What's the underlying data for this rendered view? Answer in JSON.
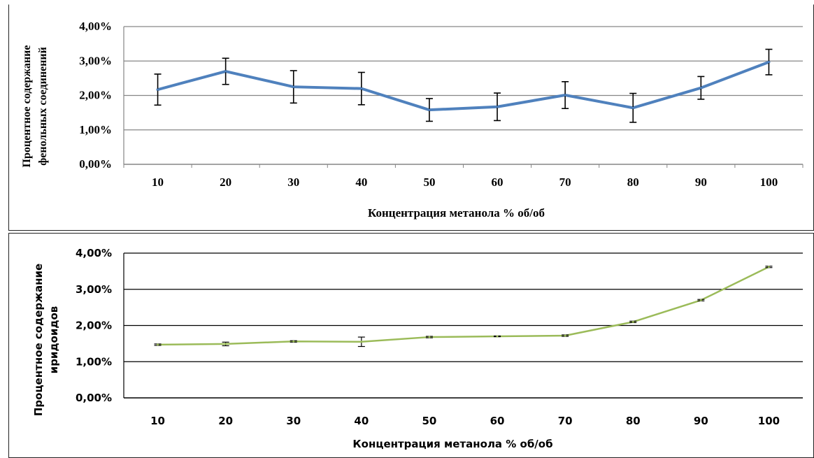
{
  "colors": {
    "series_top": "#4F81BD",
    "series_bottom": "#9BBB59",
    "grid_top": "#868686",
    "grid_bottom": "#000000",
    "error_bars": "#000000",
    "frame": "#222222"
  },
  "chart_data": [
    {
      "type": "line",
      "title": "",
      "xlabel": "Концентрация метанола % об/об",
      "ylabel": [
        "Процентное содержание",
        "фенольных соединений"
      ],
      "categories": [
        "10",
        "20",
        "30",
        "40",
        "50",
        "60",
        "70",
        "80",
        "90",
        "100"
      ],
      "y_ticks": [
        "0,00%",
        "1,00%",
        "2,00%",
        "3,00%",
        "4,00%"
      ],
      "ylim": [
        0,
        4
      ],
      "grid": true,
      "legend": "none",
      "series": [
        {
          "values": [
            2.17,
            2.7,
            2.25,
            2.2,
            1.58,
            1.67,
            2.01,
            1.64,
            2.22,
            2.97
          ],
          "error": [
            0.45,
            0.38,
            0.47,
            0.47,
            0.33,
            0.4,
            0.39,
            0.42,
            0.33,
            0.37
          ],
          "color": "#4F81BD"
        }
      ]
    },
    {
      "type": "line",
      "title": "",
      "xlabel": "Концентрация метанола % об/об",
      "ylabel": [
        "Процентное содержание",
        "иридоидов"
      ],
      "categories": [
        "10",
        "20",
        "30",
        "40",
        "50",
        "60",
        "70",
        "80",
        "90",
        "100"
      ],
      "y_ticks": [
        "0,00%",
        "1,00%",
        "2,00%",
        "3,00%",
        "4,00%"
      ],
      "ylim": [
        0,
        4
      ],
      "grid": true,
      "legend": "none",
      "series": [
        {
          "values": [
            1.47,
            1.49,
            1.56,
            1.55,
            1.68,
            1.7,
            1.72,
            2.1,
            2.7,
            3.62
          ],
          "error": [
            0.02,
            0.05,
            0.02,
            0.13,
            0.02,
            0.01,
            0.02,
            0.02,
            0.02,
            0.02
          ],
          "color": "#9BBB59"
        }
      ]
    }
  ]
}
